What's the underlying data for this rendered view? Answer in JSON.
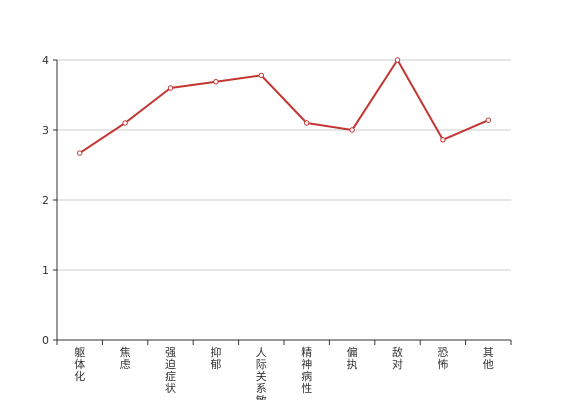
{
  "chart_data": {
    "type": "line",
    "title": "",
    "xlabel": "",
    "ylabel": "",
    "categories": [
      "躯体化",
      "焦虑",
      "强迫症状",
      "抑郁",
      "人际关系敏感",
      "精神病性",
      "偏执",
      "敌对",
      "恐怖",
      "其他"
    ],
    "series": [
      {
        "values": [
          2.67,
          3.1,
          3.6,
          3.69,
          3.78,
          3.1,
          3.0,
          4.0,
          2.86,
          3.14
        ]
      }
    ],
    "ylim": [
      0,
      4
    ],
    "yticks": [
      0,
      1,
      2,
      3,
      4
    ],
    "grid": true,
    "legend": "none",
    "colors": {
      "line": "#c23531",
      "grid": "#cccccc",
      "axis": "#333333",
      "marker_fill": "#ffffff"
    }
  }
}
